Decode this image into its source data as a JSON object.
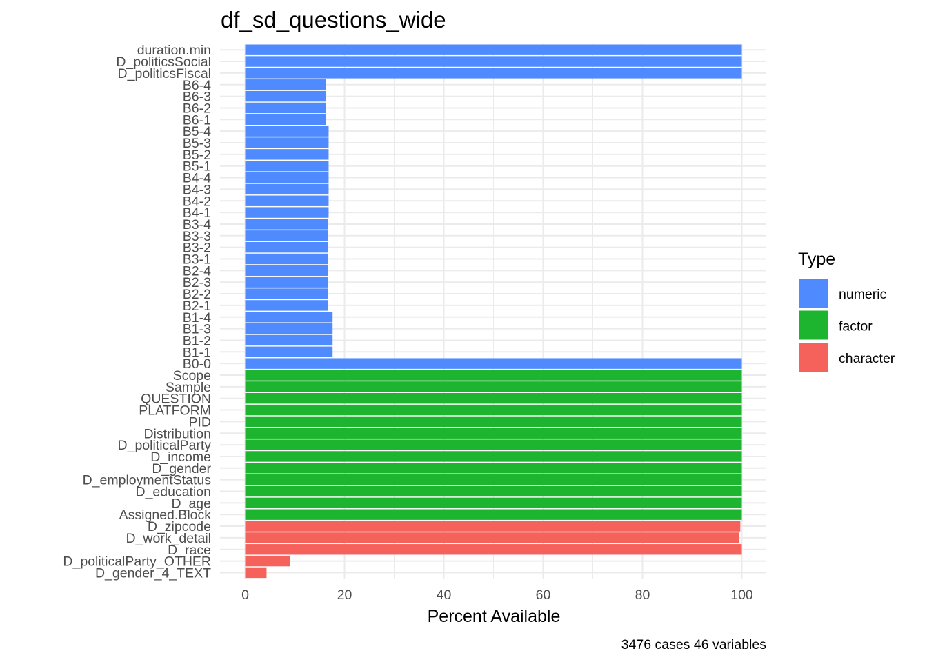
{
  "chart_data": {
    "type": "bar",
    "orientation": "horizontal",
    "title": "df_sd_questions_wide",
    "xlabel": "Percent Available",
    "ylabel": "",
    "caption": "3476 cases 46 variables",
    "xlim": [
      -5,
      105
    ],
    "xticks": [
      0,
      20,
      40,
      60,
      80,
      100
    ],
    "grid": true,
    "legend": {
      "title": "Type",
      "position": "right",
      "entries": [
        {
          "name": "numeric",
          "color": "#4f8afe"
        },
        {
          "name": "factor",
          "color": "#1db430"
        },
        {
          "name": "character",
          "color": "#f5625c"
        }
      ]
    },
    "categories": [
      "duration.min",
      "D_politicsSocial",
      "D_politicsFiscal",
      "B6-4",
      "B6-3",
      "B6-2",
      "B6-1",
      "B5-4",
      "B5-3",
      "B5-2",
      "B5-1",
      "B4-4",
      "B4-3",
      "B4-2",
      "B4-1",
      "B3-4",
      "B3-3",
      "B3-2",
      "B3-1",
      "B2-4",
      "B2-3",
      "B2-2",
      "B2-1",
      "B1-4",
      "B1-3",
      "B1-2",
      "B1-1",
      "B0-0",
      "Scope",
      "Sample",
      "QUESTION",
      "PLATFORM",
      "PID",
      "Distribution",
      "D_politicalParty",
      "D_income",
      "D_gender",
      "D_employmentStatus",
      "D_education",
      "D_age",
      "Assigned.Block",
      "D_zipcode",
      "D_work_detail",
      "D_race",
      "D_politicalParty_OTHER",
      "D_gender_4_TEXT"
    ],
    "values": [
      100,
      100,
      100,
      16.3,
      16.3,
      16.3,
      16.3,
      16.8,
      16.8,
      16.8,
      16.8,
      16.8,
      16.8,
      16.8,
      16.8,
      16.6,
      16.6,
      16.6,
      16.6,
      16.6,
      16.6,
      16.6,
      16.6,
      17.6,
      17.6,
      17.6,
      17.6,
      100,
      100,
      100,
      100,
      100,
      100,
      100,
      100,
      100,
      100,
      100,
      100,
      100,
      100,
      99.7,
      99.4,
      100,
      9.0,
      4.3
    ],
    "types": [
      "numeric",
      "numeric",
      "numeric",
      "numeric",
      "numeric",
      "numeric",
      "numeric",
      "numeric",
      "numeric",
      "numeric",
      "numeric",
      "numeric",
      "numeric",
      "numeric",
      "numeric",
      "numeric",
      "numeric",
      "numeric",
      "numeric",
      "numeric",
      "numeric",
      "numeric",
      "numeric",
      "numeric",
      "numeric",
      "numeric",
      "numeric",
      "numeric",
      "factor",
      "factor",
      "factor",
      "factor",
      "factor",
      "factor",
      "factor",
      "factor",
      "factor",
      "factor",
      "factor",
      "factor",
      "factor",
      "character",
      "character",
      "character",
      "character",
      "character"
    ]
  }
}
